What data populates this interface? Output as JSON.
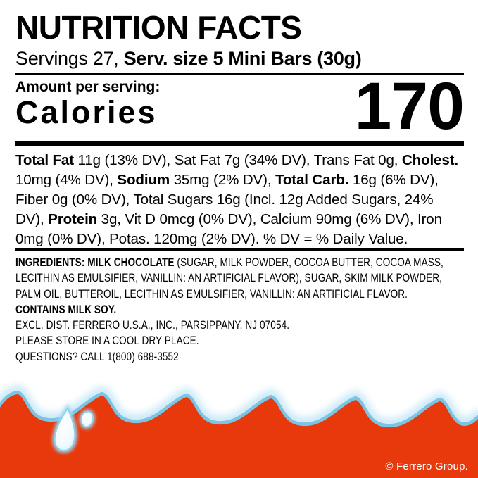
{
  "label": {
    "title": "NUTRITION FACTS",
    "serving_line": {
      "segments": [
        {
          "text": "Servings 27, ",
          "bold": false
        },
        {
          "text": "Serv. size 5 Mini Bars (30g)",
          "bold": true
        }
      ]
    },
    "amount_heading": "Amount per serving:",
    "calories_label": "Calories",
    "calories_value": "170",
    "nutrition_paragraph": {
      "segments": [
        {
          "text": "Total Fat ",
          "bold": true
        },
        {
          "text": "11g (13% DV), Sat Fat 7g (34% DV), Trans Fat 0g, "
        },
        {
          "text": "Cholest.",
          "bold": true
        },
        {
          "break": true
        },
        {
          "text": "10mg (4% DV), "
        },
        {
          "text": "Sodium",
          "bold": true
        },
        {
          "text": " 35mg (2% DV), "
        },
        {
          "text": "Total Carb.",
          "bold": true
        },
        {
          "text": " 16g (6% DV),"
        },
        {
          "break": true
        },
        {
          "text": "Fiber 0g (0% DV), Total Sugars 16g (Incl. 12g Added Sugars, 24%"
        },
        {
          "break": true
        },
        {
          "text": "DV), "
        },
        {
          "text": "Protein",
          "bold": true
        },
        {
          "text": " 3g, Vit D 0mcg (0% DV), Calcium 90mg (6% DV), Iron"
        },
        {
          "break": true
        },
        {
          "text": "0mg (0% DV), Potas. 120mg (2% DV). % DV = % Daily Value."
        }
      ]
    },
    "ingredients_block": {
      "segments": [
        {
          "text": "INGREDIENTS: MILK CHOCOLATE ",
          "bold": true
        },
        {
          "text": "(SUGAR, MILK POWDER, COCOA BUTTER, COCOA MASS,"
        },
        {
          "break": true
        },
        {
          "text": "LECITHIN AS EMULSIFIER, VANILLIN: AN ARTIFICIAL FLAVOR), SUGAR, SKIM MILK POWDER,"
        },
        {
          "break": true
        },
        {
          "text": "PALM OIL, BUTTEROIL, LECITHIN AS EMULSIFIER, VANILLIN: AN ARTIFICIAL FLAVOR."
        },
        {
          "break": true
        },
        {
          "text": "CONTAINS MILK SOY.",
          "bold": true
        },
        {
          "break": true
        },
        {
          "text": "EXCL. DIST. FERRERO U.S.A., INC., PARSIPPANY, NJ 07054."
        },
        {
          "break": true
        },
        {
          "text": "PLEASE STORE IN A COOL DRY PLACE."
        },
        {
          "break": true
        },
        {
          "text": "QUESTIONS? CALL 1(800) 688-3552"
        }
      ]
    }
  },
  "footer": {
    "copyright": "© Ferrero Group."
  },
  "colors": {
    "text": "#000000",
    "orange": "#e8390c",
    "wave_blue": "#7cc4e4",
    "wave_glow": "#c9e9f7",
    "droplet_edge": "#8fd0ea",
    "droplet_glow": "#9ed7f0"
  }
}
